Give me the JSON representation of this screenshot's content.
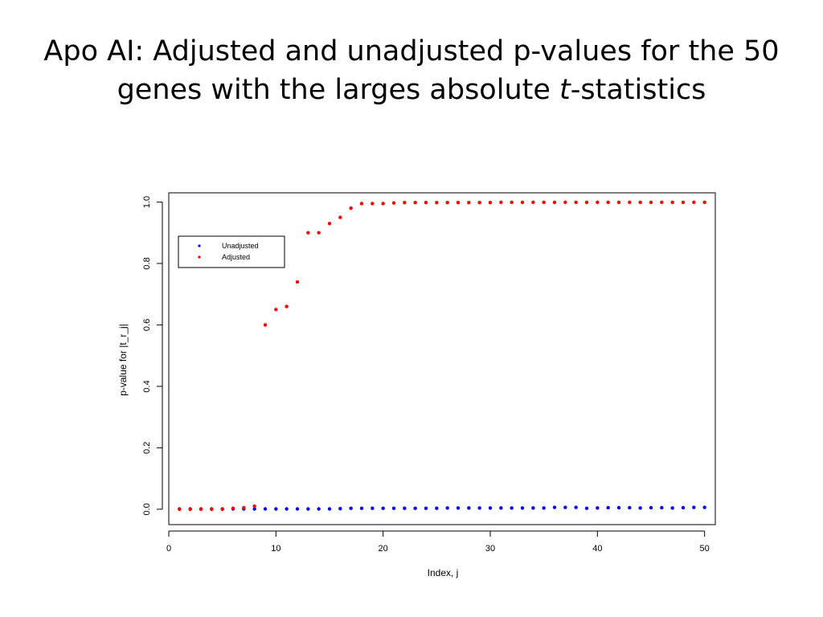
{
  "slide": {
    "title_line1": "Apo AI: Adjusted and unadjusted p-values for the 50",
    "title_line2_prefix": "genes with the larges absolute ",
    "title_line2_italic": "t",
    "title_line2_suffix": "-statistics"
  },
  "chart_data": {
    "type": "scatter",
    "title": "",
    "xlabel": "Index, j",
    "ylabel": "p-value for |t_r_j|",
    "xlim": [
      0,
      51
    ],
    "ylim": [
      -0.05,
      1.03
    ],
    "xticks": [
      0,
      10,
      20,
      30,
      40,
      50
    ],
    "yticks": [
      "0.0",
      "0.2",
      "0.4",
      "0.6",
      "0.8",
      "1.0"
    ],
    "grid": false,
    "legend_position": "top-left",
    "series": [
      {
        "name": "Unadjusted",
        "color": "#0000ff",
        "x": [
          1,
          2,
          3,
          4,
          5,
          6,
          7,
          8,
          9,
          10,
          11,
          12,
          13,
          14,
          15,
          16,
          17,
          18,
          19,
          20,
          21,
          22,
          23,
          24,
          25,
          26,
          27,
          28,
          29,
          30,
          31,
          32,
          33,
          34,
          35,
          36,
          37,
          38,
          39,
          40,
          41,
          42,
          43,
          44,
          45,
          46,
          47,
          48,
          49,
          50
        ],
        "y": [
          0.001,
          0.001,
          0.001,
          0.001,
          0.001,
          0.001,
          0.001,
          0.001,
          0.001,
          0.001,
          0.001,
          0.001,
          0.001,
          0.001,
          0.001,
          0.002,
          0.003,
          0.003,
          0.003,
          0.003,
          0.003,
          0.003,
          0.003,
          0.003,
          0.003,
          0.004,
          0.004,
          0.004,
          0.004,
          0.004,
          0.004,
          0.004,
          0.004,
          0.004,
          0.004,
          0.006,
          0.006,
          0.006,
          0.003,
          0.004,
          0.005,
          0.005,
          0.005,
          0.004,
          0.005,
          0.005,
          0.004,
          0.005,
          0.006,
          0.006
        ]
      },
      {
        "name": "Adjusted",
        "color": "#ff0000",
        "x": [
          1,
          2,
          3,
          4,
          5,
          6,
          7,
          8,
          9,
          10,
          11,
          12,
          13,
          14,
          15,
          16,
          17,
          18,
          19,
          20,
          21,
          22,
          23,
          24,
          25,
          26,
          27,
          28,
          29,
          30,
          31,
          32,
          33,
          34,
          35,
          36,
          37,
          38,
          39,
          40,
          41,
          42,
          43,
          44,
          45,
          46,
          47,
          48,
          49,
          50
        ],
        "y": [
          0.0,
          0.0,
          0.0,
          0.0,
          0.0,
          0.003,
          0.005,
          0.01,
          0.6,
          0.65,
          0.66,
          0.74,
          0.9,
          0.9,
          0.93,
          0.95,
          0.98,
          0.995,
          0.995,
          0.995,
          0.997,
          0.998,
          0.998,
          0.998,
          0.998,
          0.998,
          0.998,
          0.998,
          0.998,
          0.998,
          0.999,
          0.999,
          0.999,
          0.999,
          0.999,
          0.999,
          0.999,
          0.999,
          0.999,
          0.999,
          0.999,
          0.999,
          0.999,
          0.999,
          0.999,
          0.999,
          0.999,
          0.999,
          0.999,
          0.999
        ]
      }
    ]
  }
}
